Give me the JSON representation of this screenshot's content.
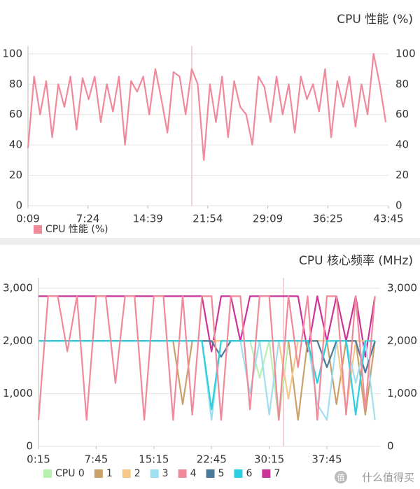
{
  "chart_data": [
    {
      "type": "line",
      "title": "CPU 性能 (%)",
      "x": [
        9,
        53,
        97,
        141,
        185,
        229,
        273,
        317,
        361,
        405,
        449,
        493,
        537,
        581,
        625,
        669,
        713,
        757,
        801,
        845,
        889,
        933,
        977,
        1021,
        1065,
        1109,
        1153,
        1197,
        1241,
        1285,
        1329,
        1373,
        1417,
        1461,
        1505,
        1549,
        1593,
        1637,
        1681,
        1725,
        1769,
        1813,
        1857,
        1901,
        1945,
        1989,
        2033,
        2077,
        2121,
        2165,
        2209,
        2253,
        2297,
        2341,
        2385,
        2429,
        2473,
        2517,
        2561,
        2605
      ],
      "xlim": [
        9,
        2625
      ],
      "xticks": [
        {
          "value": 9,
          "label": "0:09"
        },
        {
          "value": 444,
          "label": "7:24"
        },
        {
          "value": 879,
          "label": "14:39"
        },
        {
          "value": 1314,
          "label": "21:54"
        },
        {
          "value": 1749,
          "label": "29:09"
        },
        {
          "value": 2185,
          "label": "36:25"
        },
        {
          "value": 2625,
          "label": "43:45"
        }
      ],
      "ylim": [
        0,
        105
      ],
      "yticks": [
        0,
        20,
        40,
        60,
        80,
        100
      ],
      "grid": true,
      "series": [
        {
          "name": "CPU 性能 (%)",
          "color": "#f08a9a",
          "values": [
            38,
            85,
            60,
            82,
            45,
            80,
            65,
            85,
            50,
            84,
            70,
            85,
            55,
            80,
            62,
            85,
            40,
            82,
            75,
            85,
            60,
            90,
            70,
            48,
            88,
            85,
            60,
            90,
            80,
            30,
            80,
            55,
            85,
            45,
            82,
            65,
            60,
            40,
            85,
            78,
            55,
            85,
            60,
            80,
            48,
            85,
            70,
            80,
            62,
            90,
            45,
            82,
            65,
            85,
            52,
            80,
            60,
            100,
            80,
            55
          ]
        }
      ]
    },
    {
      "type": "line",
      "title": "CPU 核心频率 (MHz)",
      "x": [
        15,
        90,
        165,
        240,
        315,
        390,
        465,
        540,
        615,
        690,
        765,
        840,
        915,
        990,
        1065,
        1140,
        1215,
        1290,
        1365,
        1440,
        1515,
        1590,
        1665,
        1740,
        1815,
        1890,
        1965,
        2040,
        2115,
        2190,
        2265,
        2340,
        2415,
        2490,
        2565,
        2640
      ],
      "xlim": [
        15,
        2680
      ],
      "xticks": [
        {
          "value": 15,
          "label": "0:15"
        },
        {
          "value": 465,
          "label": "7:45"
        },
        {
          "value": 915,
          "label": "15:15"
        },
        {
          "value": 1365,
          "label": "22:45"
        },
        {
          "value": 1815,
          "label": "30:15"
        },
        {
          "value": 2265,
          "label": "37:45"
        }
      ],
      "ylim": [
        0,
        3200
      ],
      "yticks": [
        0,
        {
          "value": 1000,
          "label": "1,000"
        },
        {
          "value": 2000,
          "label": "2,000"
        },
        {
          "value": 3000,
          "label": "3,000"
        }
      ],
      "grid": true,
      "series": [
        {
          "name": "CPU 0",
          "color": "#b8f0b0",
          "values": [
            2000,
            2000,
            2000,
            2000,
            2000,
            2000,
            2000,
            2000,
            2000,
            2000,
            2000,
            2000,
            2000,
            2000,
            2000,
            2000,
            2000,
            2000,
            2000,
            2000,
            2000,
            2000,
            2000,
            1300,
            2000,
            500,
            2000,
            2000,
            2000,
            2000,
            2000,
            2000,
            2000,
            2000,
            2000,
            2000
          ]
        },
        {
          "name": "1",
          "color": "#c8a26a",
          "values": [
            2000,
            2000,
            2000,
            2000,
            2000,
            2000,
            2000,
            2000,
            2000,
            2000,
            2000,
            2000,
            2000,
            2000,
            2000,
            800,
            2000,
            2000,
            2000,
            2000,
            2000,
            2000,
            2000,
            2000,
            2000,
            2000,
            2000,
            500,
            2000,
            2000,
            2000,
            800,
            2000,
            2000,
            600,
            2000
          ]
        },
        {
          "name": "2",
          "color": "#f5c88a",
          "values": [
            2000,
            2000,
            2000,
            2000,
            2000,
            2000,
            2000,
            2000,
            2000,
            2000,
            2000,
            2000,
            2000,
            2000,
            2000,
            2000,
            2000,
            2000,
            2000,
            2000,
            2000,
            2000,
            2000,
            2000,
            2000,
            2000,
            900,
            2000,
            2000,
            2000,
            2000,
            2000,
            700,
            2000,
            2000,
            2000
          ]
        },
        {
          "name": "3",
          "color": "#9fdff0",
          "values": [
            2000,
            2000,
            2000,
            2000,
            2000,
            2000,
            2000,
            2000,
            2000,
            2000,
            2000,
            2000,
            2000,
            2000,
            2000,
            2000,
            2000,
            2000,
            500,
            2000,
            2000,
            2000,
            1000,
            2000,
            600,
            2000,
            2000,
            2000,
            2000,
            800,
            500,
            2000,
            2000,
            1200,
            2000,
            500
          ]
        },
        {
          "name": "4",
          "color": "#f08a9a",
          "values": [
            500,
            2850,
            2850,
            1800,
            2850,
            500,
            2850,
            2850,
            1200,
            2850,
            2850,
            500,
            2850,
            2850,
            500,
            2850,
            600,
            2850,
            2850,
            500,
            2850,
            2850,
            700,
            2850,
            2850,
            500,
            2850,
            1500,
            2850,
            500,
            2850,
            2850,
            600,
            2850,
            700,
            2850
          ]
        },
        {
          "name": "5",
          "color": "#4a7a99",
          "values": [
            2000,
            2000,
            2000,
            2000,
            2000,
            2000,
            2000,
            2000,
            2000,
            2000,
            2000,
            2000,
            2000,
            2000,
            2000,
            2000,
            2000,
            2000,
            2000,
            1700,
            2000,
            2000,
            2000,
            2000,
            2000,
            2000,
            2000,
            2000,
            2000,
            2000,
            1500,
            2000,
            2000,
            2000,
            1400,
            2000
          ]
        },
        {
          "name": "6",
          "color": "#2ad0e0",
          "values": [
            2000,
            2000,
            2000,
            2000,
            2000,
            2000,
            2000,
            2000,
            2000,
            2000,
            2000,
            2000,
            2000,
            2000,
            2000,
            2000,
            2000,
            2000,
            700,
            2000,
            2000,
            2000,
            2000,
            2000,
            2000,
            2000,
            2000,
            2000,
            2000,
            1200,
            2000,
            2000,
            2000,
            600,
            2000,
            2000
          ]
        },
        {
          "name": "7",
          "color": "#cc3399",
          "values": [
            2850,
            2850,
            2850,
            2850,
            2850,
            2850,
            2850,
            2850,
            2850,
            2850,
            2850,
            2850,
            2850,
            2850,
            2850,
            2850,
            2850,
            2850,
            1800,
            2850,
            2850,
            2000,
            2850,
            2850,
            2850,
            2850,
            2850,
            2850,
            1800,
            2850,
            2000,
            2850,
            2000,
            2850,
            1700,
            2850
          ]
        }
      ]
    }
  ],
  "watermark": "什么值得买",
  "logo": "值"
}
